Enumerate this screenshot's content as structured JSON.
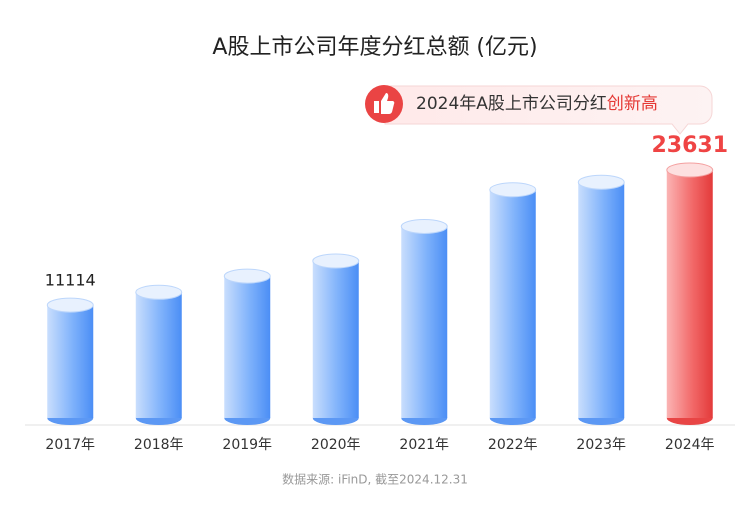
{
  "chart_data": {
    "type": "bar",
    "title": "A股上市公司年度分红总额 (亿元)",
    "callout": {
      "text": "2024年A股上市公司分红",
      "highlight": "创新高"
    },
    "source": "数据来源: iFinD, 截至2024.12.31",
    "categories": [
      "2017年",
      "2018年",
      "2019年",
      "2020年",
      "2021年",
      "2022年",
      "2023年",
      "2024年"
    ],
    "values": [
      11114,
      12300,
      13800,
      15200,
      18400,
      21800,
      22500,
      23631
    ],
    "color": "#5b9df9",
    "highlight_color": "#ef4444"
  }
}
